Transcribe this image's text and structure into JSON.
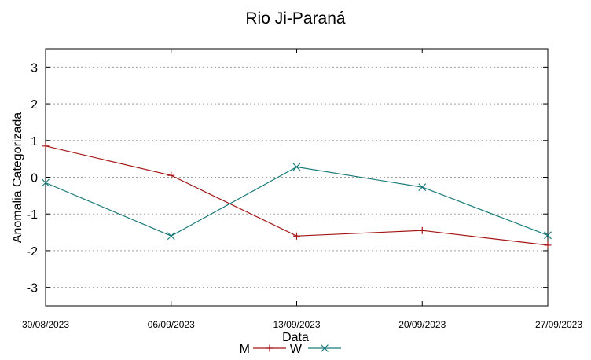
{
  "chart_data": {
    "type": "line",
    "title": "Rio Ji-Paraná",
    "xlabel": "Data",
    "ylabel": "Anomalia Categorizada",
    "categories": [
      "30/08/2023",
      "06/09/2023",
      "13/09/2023",
      "20/09/2023",
      "27/09/2023"
    ],
    "ylim": [
      -3.5,
      3.5
    ],
    "yticks": [
      "3",
      "2",
      "1",
      "0",
      "-1",
      "-2",
      "-3"
    ],
    "ytick_values": [
      3,
      2,
      1,
      0,
      -1,
      -2,
      -3
    ],
    "grid": true,
    "legend_position": "bottom",
    "series": [
      {
        "name": "M",
        "color": "#a31515",
        "marker": "plus",
        "values": [
          0.85,
          0.05,
          -1.6,
          -1.45,
          -1.85
        ]
      },
      {
        "name": "W",
        "color": "#1a7a7a",
        "marker": "x",
        "values": [
          -0.15,
          -1.6,
          0.28,
          -0.27,
          -1.58
        ]
      }
    ]
  }
}
